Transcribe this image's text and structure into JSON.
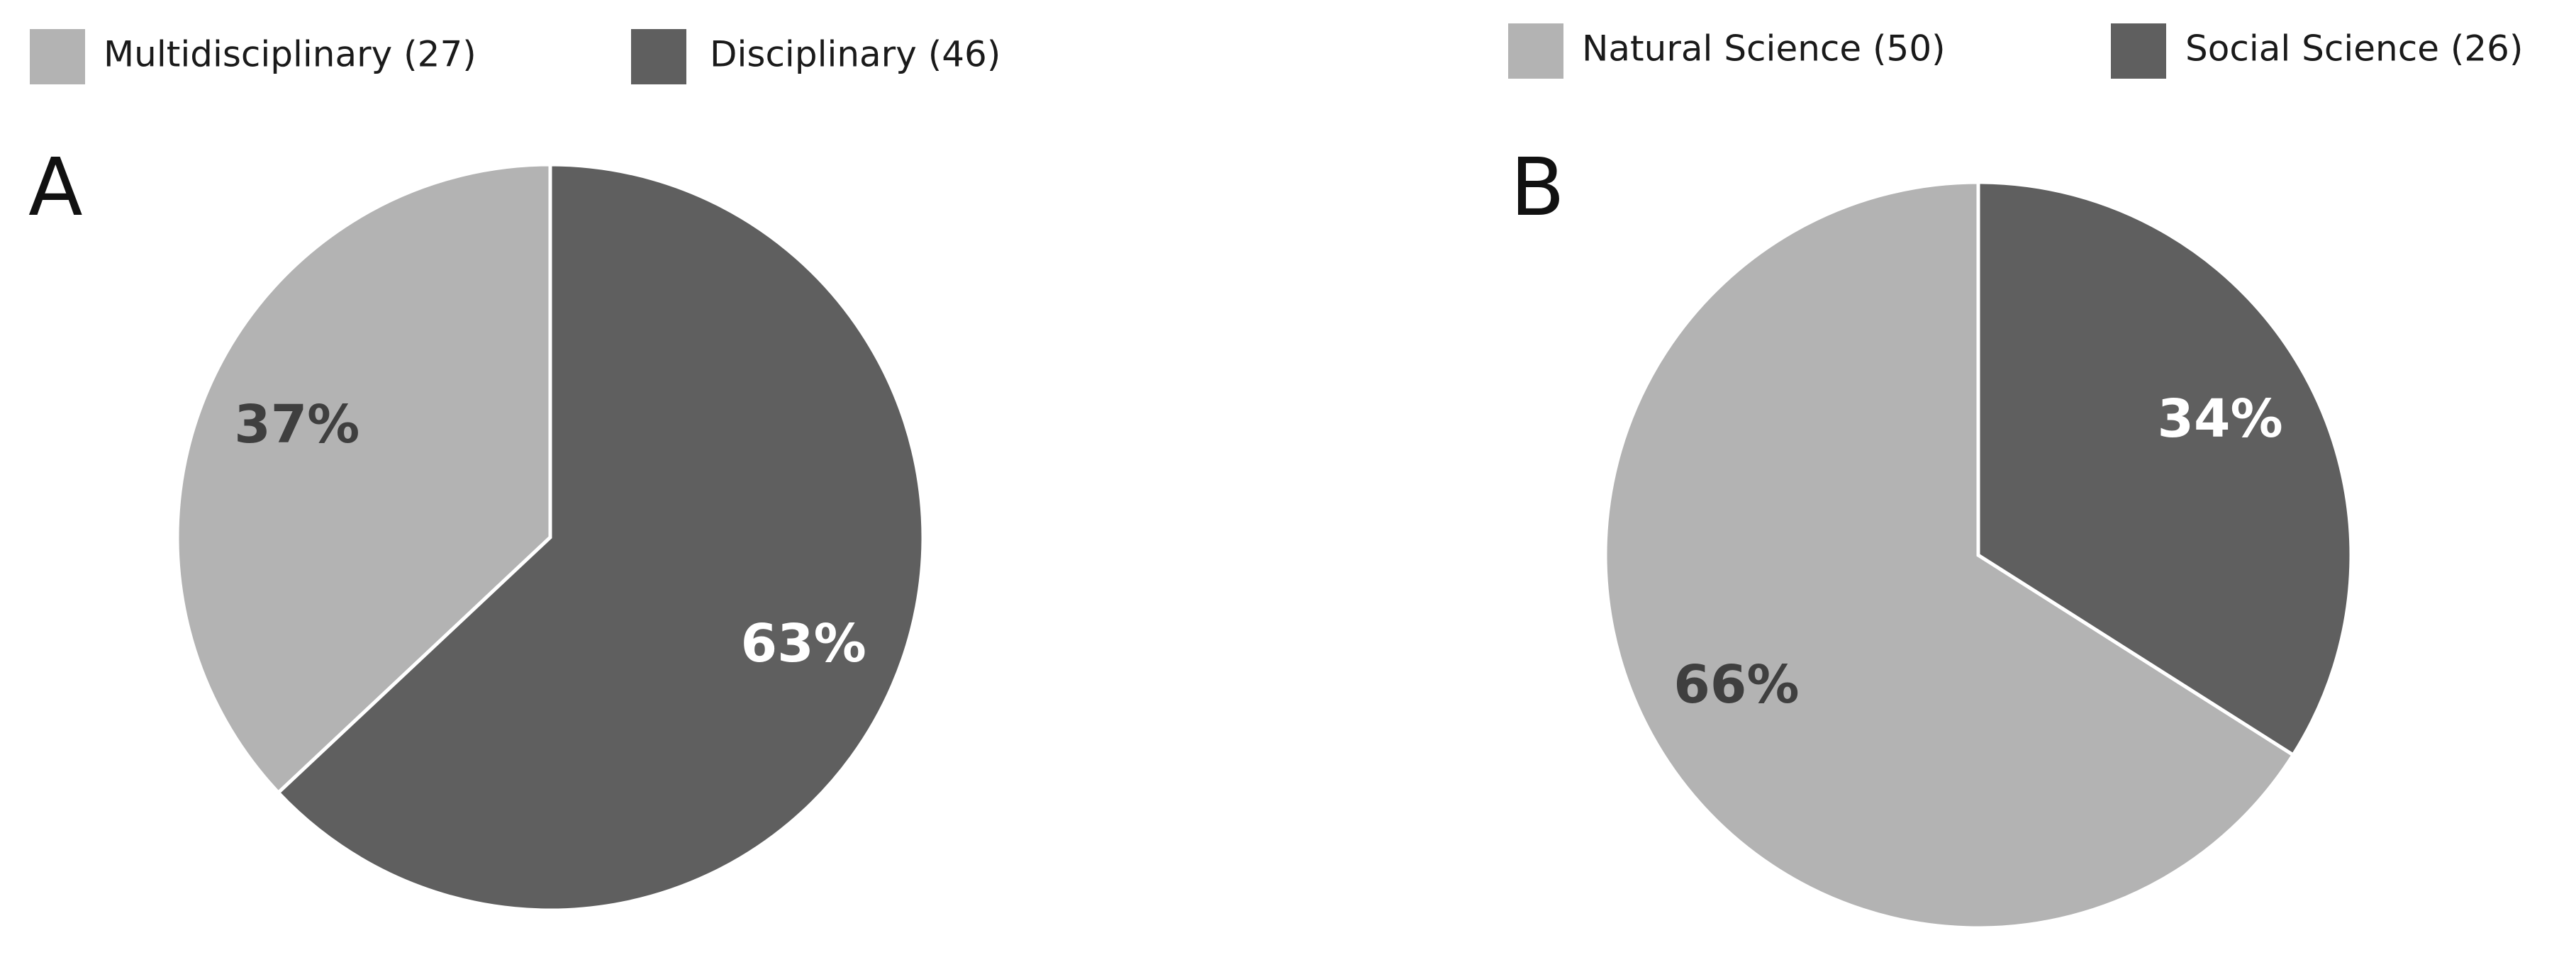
{
  "chart_data": [
    {
      "type": "pie",
      "title": "A",
      "categories": [
        "Multidisciplinary (27)",
        "Disciplinary (46)"
      ],
      "values": [
        37,
        63
      ],
      "value_labels": [
        "37%",
        "63%"
      ],
      "colors": [
        "#b3b3b3",
        "#5f5f5f"
      ]
    },
    {
      "type": "pie",
      "title": "B",
      "categories": [
        "Natural Science (50)",
        "Social Science (26)"
      ],
      "values": [
        66,
        34
      ],
      "value_labels": [
        "66%",
        "34%"
      ],
      "colors": [
        "#b3b3b3",
        "#5f5f5f"
      ]
    }
  ]
}
